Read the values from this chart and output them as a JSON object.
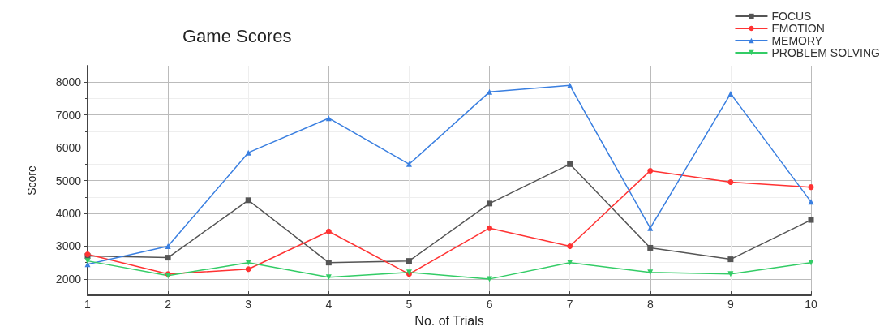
{
  "chart_data": {
    "type": "line",
    "title": "Game Scores",
    "xlabel": "No. of Trials",
    "ylabel": "Score",
    "x": [
      1,
      2,
      3,
      4,
      5,
      6,
      7,
      8,
      9,
      10
    ],
    "series": [
      {
        "name": "FOCUS",
        "color": "#555555",
        "marker": "square",
        "values": [
          2700,
          2650,
          4400,
          2500,
          2550,
          4300,
          5500,
          2950,
          2600,
          3800
        ]
      },
      {
        "name": "EMOTION",
        "color": "#ff3333",
        "marker": "circle",
        "values": [
          2750,
          2150,
          2300,
          3450,
          2150,
          3550,
          3000,
          5300,
          4950,
          4800
        ]
      },
      {
        "name": "MEMORY",
        "color": "#3a7fe0",
        "marker": "triangle",
        "values": [
          2450,
          3000,
          5850,
          6900,
          5500,
          7700,
          7900,
          3550,
          7650,
          4350
        ]
      },
      {
        "name": "PROBLEM SOLVING",
        "color": "#33cc66",
        "marker": "triangle-down",
        "values": [
          2550,
          2100,
          2500,
          2050,
          2200,
          2000,
          2500,
          2200,
          2150,
          2500
        ]
      }
    ],
    "xlim": [
      1,
      10
    ],
    "xticks": [
      1,
      2,
      3,
      4,
      5,
      6,
      7,
      8,
      9,
      10
    ],
    "ylim": [
      1500,
      8500
    ],
    "yticks": [
      2000,
      3000,
      4000,
      5000,
      6000,
      7000,
      8000
    ],
    "grid": true,
    "legend": "top right",
    "line_style": "solid"
  }
}
